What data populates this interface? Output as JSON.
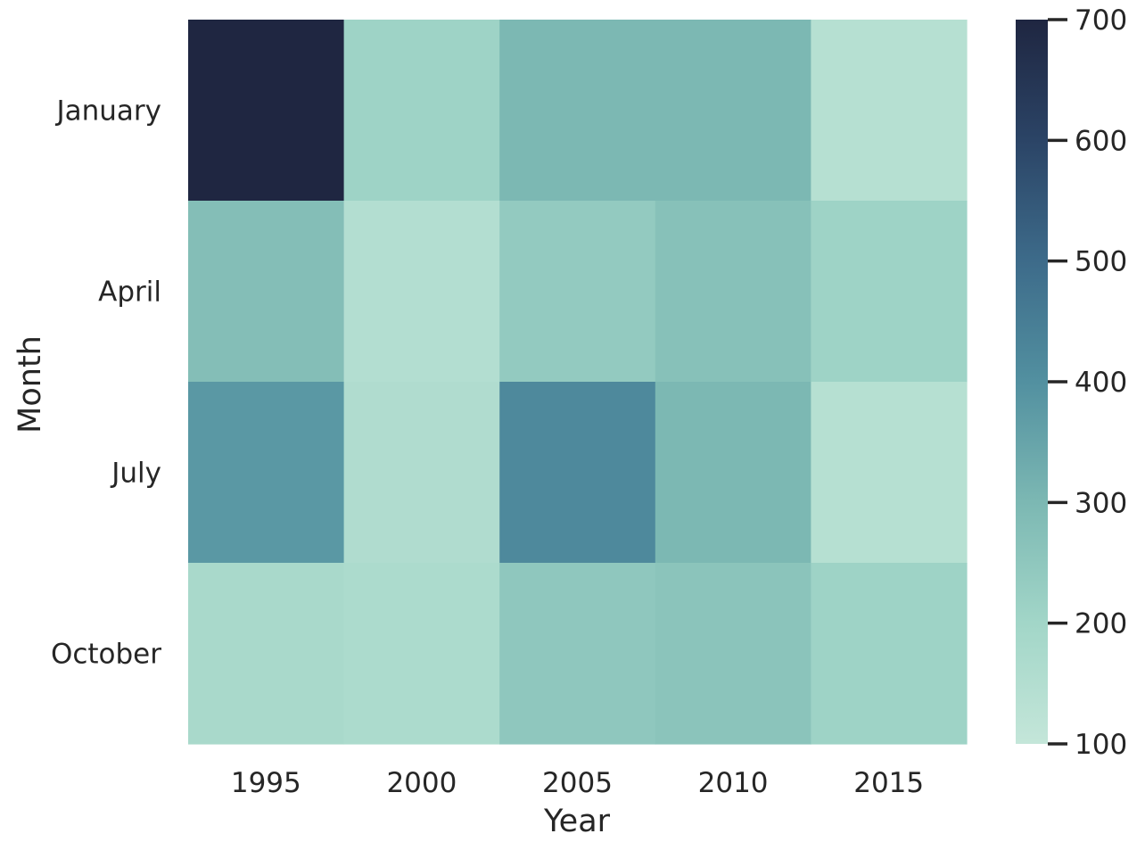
{
  "chart_data": {
    "type": "heatmap",
    "title": "",
    "xlabel": "Year",
    "ylabel": "Month",
    "x": [
      "1995",
      "2000",
      "2005",
      "2010",
      "2015"
    ],
    "y": [
      "January",
      "April",
      "July",
      "October"
    ],
    "values": [
      [
        700,
        210,
        300,
        300,
        140
      ],
      [
        280,
        150,
        240,
        270,
        210
      ],
      [
        380,
        160,
        420,
        300,
        140
      ],
      [
        180,
        170,
        250,
        260,
        210
      ]
    ],
    "colorbar": {
      "min": 100,
      "max": 700,
      "ticks": [
        "100",
        "200",
        "300",
        "400",
        "500",
        "600",
        "700"
      ]
    },
    "colormap": [
      "#c4e6d9",
      "#a2d6c8",
      "#7cb8b3",
      "#5290a0",
      "#3d6b8a",
      "#2b4466",
      "#1f2641"
    ]
  }
}
